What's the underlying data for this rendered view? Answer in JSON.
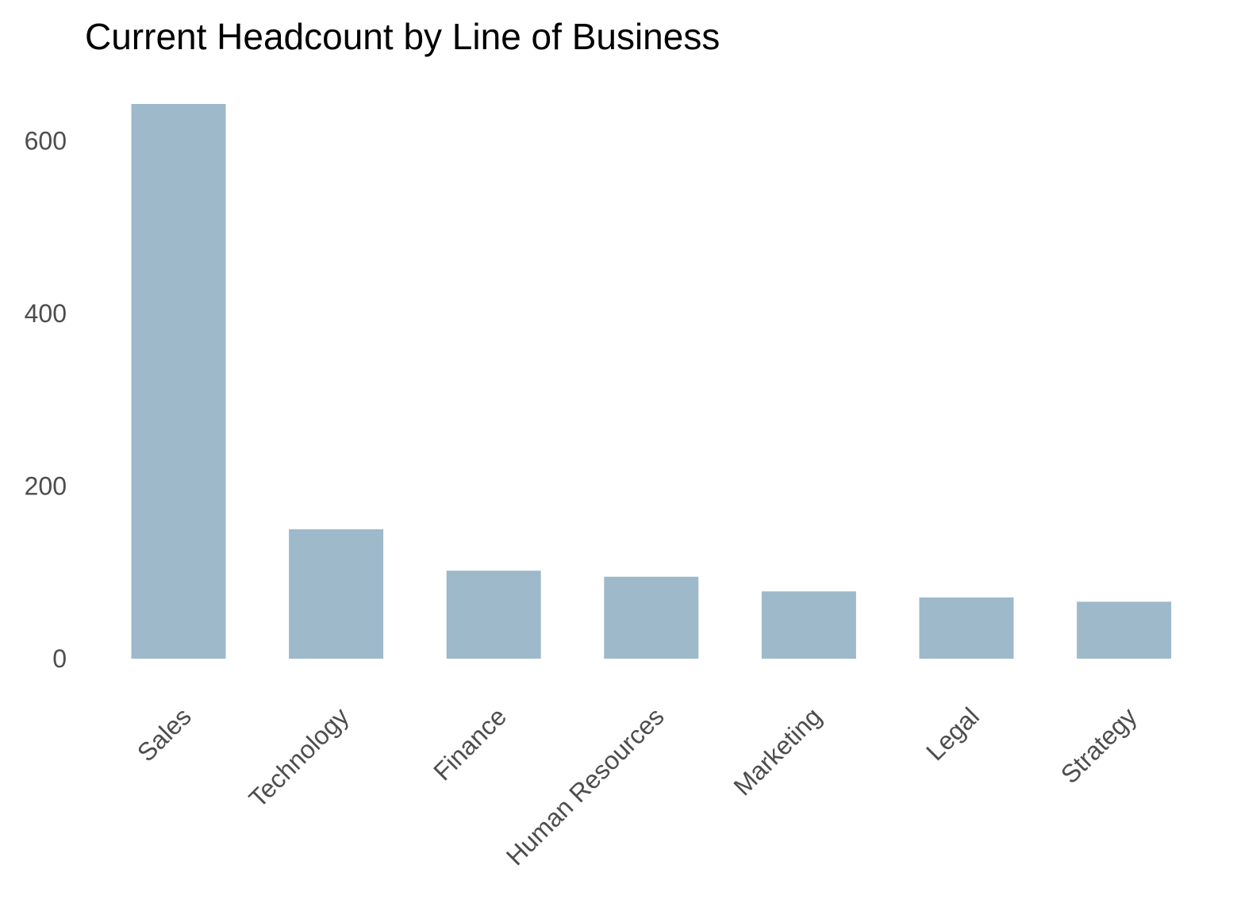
{
  "chart_data": {
    "type": "bar",
    "title": "Current Headcount by Line of Business",
    "xlabel": "",
    "ylabel": "",
    "categories": [
      "Sales",
      "Technology",
      "Finance",
      "Human Resources",
      "Marketing",
      "Legal",
      "Strategy"
    ],
    "values": [
      643,
      150,
      102,
      95,
      78,
      71,
      66
    ],
    "ylim": [
      0,
      643
    ],
    "yticks": [
      0,
      200,
      400,
      600
    ],
    "bar_color": "#9eb9ca",
    "grid": false,
    "legend": "none"
  }
}
